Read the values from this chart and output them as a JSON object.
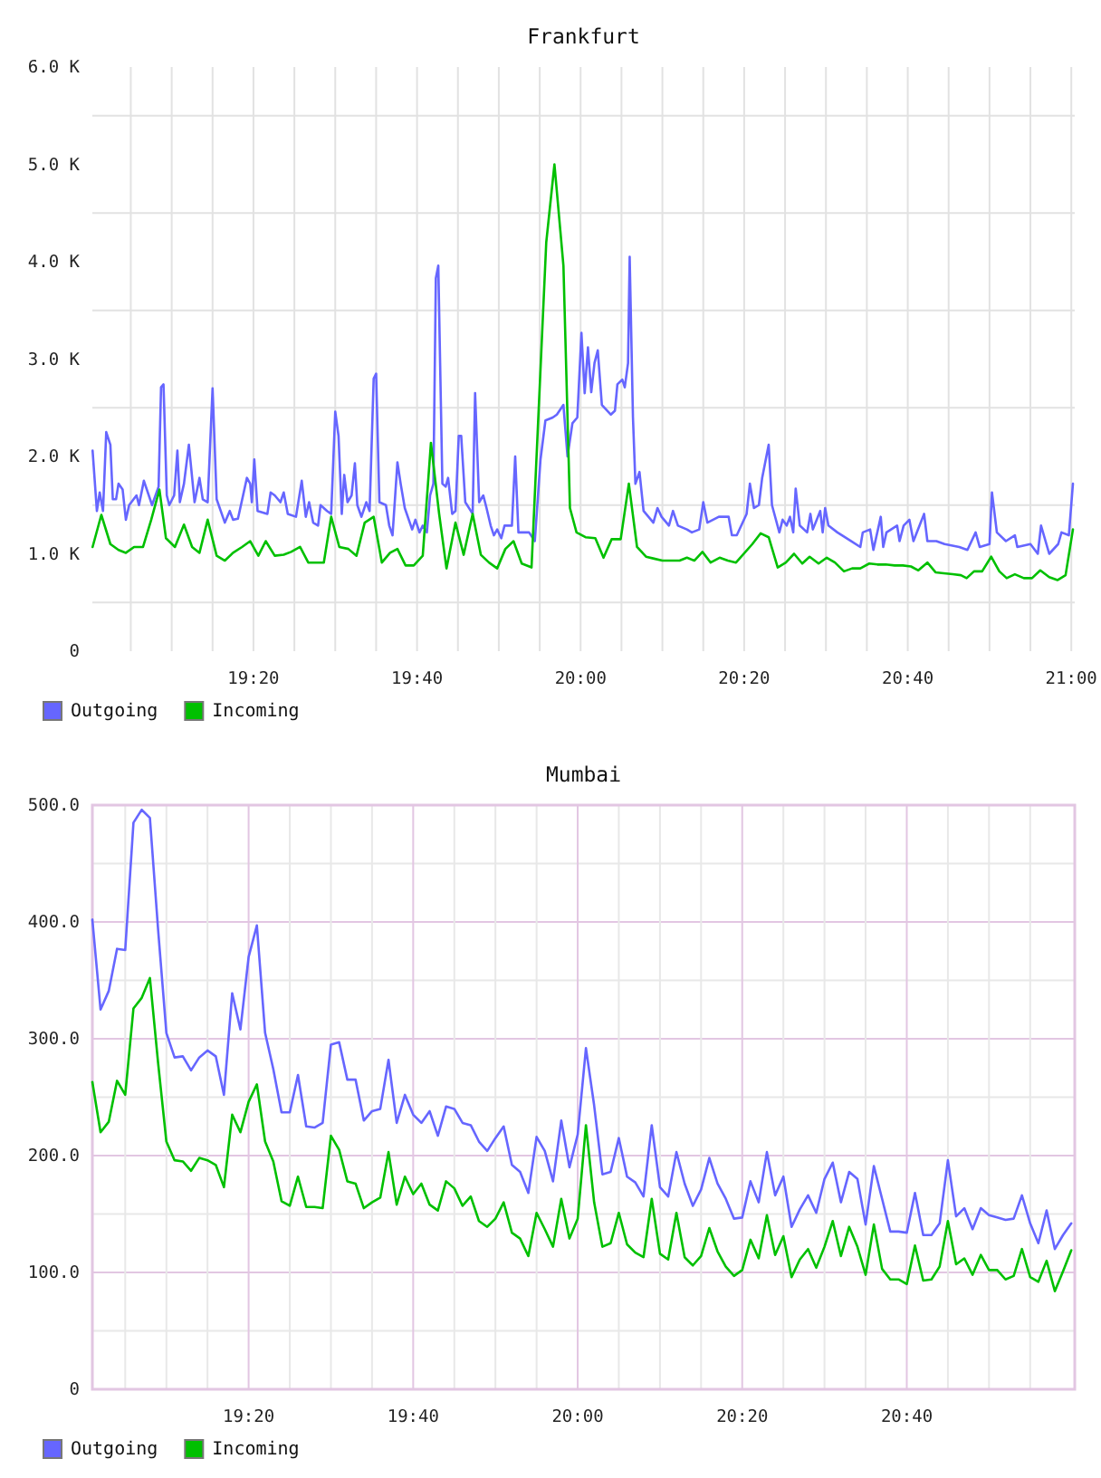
{
  "chart_data": [
    {
      "type": "line",
      "title": "Frankfurt",
      "xlim": [
        19.005,
        21.007
      ],
      "ylim": [
        0,
        6000
      ],
      "xticks": [
        {
          "value": 19.0833,
          "label": null
        },
        {
          "value": 19.1667,
          "label": null
        },
        {
          "value": 19.25,
          "label": null
        },
        {
          "value": 19.3333,
          "label": "19:20"
        },
        {
          "value": 19.4167,
          "label": null
        },
        {
          "value": 19.5,
          "label": null
        },
        {
          "value": 19.5833,
          "label": null
        },
        {
          "value": 19.6667,
          "label": "19:40"
        },
        {
          "value": 19.75,
          "label": null
        },
        {
          "value": 19.8333,
          "label": null
        },
        {
          "value": 19.9167,
          "label": null
        },
        {
          "value": 20,
          "label": "20:00"
        },
        {
          "value": 20.0833,
          "label": null
        },
        {
          "value": 20.1667,
          "label": null
        },
        {
          "value": 20.25,
          "label": null
        },
        {
          "value": 20.3333,
          "label": "20:20"
        },
        {
          "value": 20.4167,
          "label": null
        },
        {
          "value": 20.5,
          "label": null
        },
        {
          "value": 20.5833,
          "label": null
        },
        {
          "value": 20.6667,
          "label": "20:40"
        },
        {
          "value": 20.75,
          "label": null
        },
        {
          "value": 20.8333,
          "label": null
        },
        {
          "value": 20.9167,
          "label": null
        },
        {
          "value": 21,
          "label": "21:00"
        }
      ],
      "yticks": [
        0,
        {
          "value": 500,
          "label": null
        },
        {
          "value": 1000,
          "label": "1.0 K"
        },
        {
          "value": 1500,
          "label": null
        },
        {
          "value": 2000,
          "label": "2.0 K"
        },
        {
          "value": 2500,
          "label": null
        },
        {
          "value": 3000,
          "label": "3.0 K"
        },
        {
          "value": 3500,
          "label": null
        },
        {
          "value": 4000,
          "label": "4.0 K"
        },
        {
          "value": 4500,
          "label": null
        },
        {
          "value": 5000,
          "label": "5.0 K"
        },
        {
          "value": 5500,
          "label": null
        },
        {
          "value": 6000,
          "label": "6.0 K"
        }
      ],
      "grid": true,
      "legend": "bottom left",
      "series": [
        {
          "name": "Outgoing",
          "color": "#6666ff",
          "x": [
            19.0055,
            19.0142,
            19.02,
            19.0267,
            19.0333,
            19.0417,
            19.0467,
            19.0533,
            19.0583,
            19.0667,
            19.0733,
            19.08,
            19.095,
            19.1,
            19.11,
            19.1267,
            19.14,
            19.145,
            19.15,
            19.1567,
            19.1617,
            19.1717,
            19.1783,
            19.1833,
            19.1917,
            19.2017,
            19.2133,
            19.2233,
            19.23,
            19.24,
            19.25,
            19.2583,
            19.275,
            19.285,
            19.2917,
            19.3017,
            19.32,
            19.3267,
            19.33,
            19.335,
            19.3417,
            19.3617,
            19.3683,
            19.3767,
            19.3883,
            19.395,
            19.4033,
            19.42,
            19.4317,
            19.44,
            19.4467,
            19.455,
            19.465,
            19.47,
            19.4833,
            19.4917,
            19.5,
            19.5067,
            19.5133,
            19.5183,
            19.525,
            19.5333,
            19.54,
            19.545,
            19.5533,
            19.5633,
            19.57,
            19.5783,
            19.5833,
            19.59,
            19.6033,
            19.61,
            19.6167,
            19.6267,
            19.6333,
            19.6417,
            19.6567,
            19.6633,
            19.6717,
            19.6783,
            19.6867,
            19.6933,
            19.7,
            19.705,
            19.71,
            19.7183,
            19.725,
            19.73,
            19.7383,
            19.745,
            19.7517,
            19.7567,
            19.765,
            19.78,
            19.785,
            19.7933,
            19.8017,
            19.8083,
            19.8167,
            19.8233,
            19.83,
            19.8383,
            19.845,
            19.86,
            19.8667,
            19.8733,
            19.895,
            19.9067,
            19.9183,
            19.9283,
            19.9433,
            19.9517,
            19.965,
            19.9733,
            19.9833,
            19.9933,
            20.0017,
            20.0083,
            20.015,
            20.0217,
            20.0283,
            20.035,
            20.0433,
            20.0617,
            20.07,
            20.075,
            20.085,
            20.09,
            20.0967,
            20.1,
            20.1067,
            20.1117,
            20.12,
            20.1283,
            20.1483,
            20.1567,
            20.165,
            20.18,
            20.1883,
            20.1983,
            20.2167,
            20.2267,
            20.2417,
            20.25,
            20.2583,
            20.2817,
            20.3017,
            20.3083,
            20.3183,
            20.3383,
            20.345,
            20.3533,
            20.3633,
            20.37,
            20.3833,
            20.39,
            20.405,
            20.4117,
            20.42,
            20.4267,
            20.4333,
            20.4383,
            20.4467,
            20.4617,
            20.4683,
            20.4733,
            20.4883,
            20.4933,
            20.4983,
            20.505,
            20.5233,
            20.5517,
            20.57,
            20.575,
            20.59,
            20.5967,
            20.6117,
            20.6167,
            20.6233,
            20.645,
            20.65,
            20.6583,
            20.67,
            20.6783,
            20.7,
            20.7067,
            20.725,
            20.7417,
            20.7717,
            20.7883,
            20.805,
            20.8133,
            20.8333,
            20.8383,
            20.8483,
            20.8667,
            20.885,
            20.89,
            20.9167,
            20.9317,
            20.9383,
            20.955,
            20.9733,
            20.98,
            20.995,
            21.0033
          ],
          "values": [
            2060,
            1440,
            1630,
            1440,
            2250,
            2120,
            1560,
            1560,
            1720,
            1660,
            1350,
            1500,
            1600,
            1500,
            1750,
            1500,
            1690,
            2710,
            2740,
            1600,
            1500,
            1600,
            2060,
            1530,
            1720,
            2120,
            1530,
            1780,
            1560,
            1530,
            2700,
            1560,
            1320,
            1440,
            1350,
            1360,
            1780,
            1720,
            1530,
            1970,
            1440,
            1410,
            1630,
            1600,
            1530,
            1630,
            1410,
            1380,
            1750,
            1380,
            1530,
            1320,
            1290,
            1500,
            1440,
            1410,
            2460,
            2210,
            1410,
            1810,
            1530,
            1600,
            1930,
            1500,
            1380,
            1530,
            1440,
            2800,
            2850,
            1530,
            1500,
            1290,
            1190,
            1940,
            1720,
            1470,
            1250,
            1350,
            1220,
            1290,
            1220,
            1600,
            1720,
            3830,
            3960,
            1720,
            1690,
            1780,
            1410,
            1440,
            2210,
            2210,
            1530,
            1410,
            2650,
            1530,
            1600,
            1470,
            1290,
            1190,
            1250,
            1160,
            1290,
            1290,
            2000,
            1220,
            1220,
            1130,
            1970,
            2370,
            2400,
            2430,
            2530,
            2000,
            2340,
            2400,
            3270,
            2650,
            3120,
            2660,
            2960,
            3090,
            2530,
            2430,
            2470,
            2740,
            2790,
            2710,
            2960,
            4050,
            2400,
            1720,
            1840,
            1440,
            1320,
            1470,
            1380,
            1290,
            1440,
            1290,
            1250,
            1220,
            1250,
            1530,
            1320,
            1380,
            1380,
            1190,
            1190,
            1410,
            1720,
            1470,
            1500,
            1780,
            2120,
            1500,
            1220,
            1350,
            1290,
            1380,
            1220,
            1670,
            1290,
            1220,
            1410,
            1250,
            1440,
            1220,
            1470,
            1290,
            1220,
            1130,
            1070,
            1220,
            1250,
            1040,
            1380,
            1070,
            1220,
            1290,
            1130,
            1290,
            1350,
            1130,
            1410,
            1130,
            1130,
            1100,
            1070,
            1040,
            1220,
            1070,
            1100,
            1630,
            1220,
            1130,
            1190,
            1070,
            1100,
            1000,
            1290,
            1000,
            1100,
            1220,
            1190,
            1720
          ]
        },
        {
          "name": "Incoming",
          "color": "#00c000",
          "x": [
            19.0055,
            19.0233,
            19.0417,
            19.0583,
            19.0733,
            19.09,
            19.1083,
            19.125,
            19.1417,
            19.155,
            19.1733,
            19.1917,
            19.2083,
            19.2233,
            19.24,
            19.2583,
            19.275,
            19.2917,
            19.31,
            19.3267,
            19.3433,
            19.3583,
            19.3767,
            19.395,
            19.41,
            19.4283,
            19.445,
            19.4617,
            19.4767,
            19.4917,
            19.5083,
            19.5267,
            19.5433,
            19.56,
            19.5783,
            19.595,
            19.6117,
            19.6267,
            19.6433,
            19.66,
            19.6783,
            19.695,
            19.7117,
            19.7267,
            19.745,
            19.7617,
            19.78,
            19.7967,
            19.8133,
            19.83,
            19.8467,
            19.8633,
            19.88,
            19.9,
            19.93,
            19.9467,
            19.965,
            19.9783,
            19.9917,
            20.01,
            20.03,
            20.0467,
            20.0633,
            20.0817,
            20.0983,
            20.115,
            20.1333,
            20.15,
            20.1667,
            20.185,
            20.2017,
            20.2167,
            20.2317,
            20.2483,
            20.265,
            20.2833,
            20.3,
            20.3167,
            20.35,
            20.3667,
            20.3833,
            20.4017,
            20.4183,
            20.435,
            20.4517,
            20.4667,
            20.485,
            20.5017,
            20.5183,
            20.5367,
            20.5533,
            20.57,
            20.5883,
            20.605,
            20.6217,
            20.64,
            20.6567,
            20.6733,
            20.6883,
            20.7067,
            20.7233,
            20.74,
            20.7583,
            20.775,
            20.7867,
            20.8017,
            20.8183,
            20.8367,
            20.8533,
            20.8683,
            20.885,
            20.9033,
            20.92,
            20.9367,
            20.955,
            20.9717,
            20.9883,
            21.0033
          ],
          "values": [
            1070,
            1400,
            1100,
            1040,
            1010,
            1070,
            1070,
            1350,
            1660,
            1160,
            1070,
            1300,
            1070,
            1010,
            1350,
            980,
            930,
            1010,
            1070,
            1130,
            980,
            1130,
            980,
            990,
            1020,
            1070,
            910,
            910,
            910,
            1380,
            1070,
            1050,
            980,
            1320,
            1380,
            910,
            1010,
            1050,
            880,
            880,
            980,
            2140,
            1410,
            850,
            1320,
            990,
            1410,
            990,
            910,
            850,
            1050,
            1130,
            900,
            860,
            4200,
            5000,
            3960,
            1470,
            1220,
            1170,
            1160,
            960,
            1150,
            1150,
            1720,
            1070,
            970,
            950,
            930,
            930,
            930,
            960,
            930,
            1020,
            910,
            960,
            930,
            910,
            1100,
            1210,
            1170,
            860,
            910,
            1000,
            900,
            970,
            900,
            960,
            910,
            820,
            850,
            850,
            900,
            890,
            890,
            880,
            880,
            870,
            830,
            910,
            810,
            800,
            790,
            780,
            750,
            820,
            820,
            970,
            820,
            750,
            790,
            750,
            750,
            830,
            760,
            730,
            780,
            1250
          ]
        }
      ]
    },
    {
      "type": "line",
      "title": "Mumbai",
      "xlim": [
        19.0167,
        21.007
      ],
      "ylim": [
        0,
        500
      ],
      "xticks": [
        {
          "value": 19.0833,
          "label": null
        },
        {
          "value": 19.1667,
          "label": null
        },
        {
          "value": 19.25,
          "label": null
        },
        {
          "value": 19.3333,
          "label": "19:20"
        },
        {
          "value": 19.4167,
          "label": null
        },
        {
          "value": 19.5,
          "label": null
        },
        {
          "value": 19.5833,
          "label": null
        },
        {
          "value": 19.6667,
          "label": "19:40"
        },
        {
          "value": 19.75,
          "label": null
        },
        {
          "value": 19.8333,
          "label": null
        },
        {
          "value": 19.9167,
          "label": null
        },
        {
          "value": 20,
          "label": "20:00"
        },
        {
          "value": 20.0833,
          "label": null
        },
        {
          "value": 20.1667,
          "label": null
        },
        {
          "value": 20.25,
          "label": null
        },
        {
          "value": 20.3333,
          "label": "20:20"
        },
        {
          "value": 20.4167,
          "label": null
        },
        {
          "value": 20.5,
          "label": null
        },
        {
          "value": 20.5833,
          "label": null
        },
        {
          "value": 20.6667,
          "label": "20:40"
        },
        {
          "value": 20.75,
          "label": null
        },
        {
          "value": 20.8333,
          "label": null
        },
        {
          "value": 20.9167,
          "label": null
        }
      ],
      "yticks": [
        0,
        {
          "value": 50,
          "label": null
        },
        {
          "value": 100,
          "label": "100.0"
        },
        {
          "value": 150,
          "label": null
        },
        {
          "value": 200,
          "label": "200.0"
        },
        {
          "value": 250,
          "label": null
        },
        {
          "value": 300,
          "label": "300.0"
        },
        {
          "value": 350,
          "label": null
        },
        {
          "value": 400,
          "label": "400.0"
        },
        {
          "value": 450,
          "label": null
        },
        {
          "value": 500,
          "label": "500.0"
        }
      ],
      "grid": true,
      "legend": "bottom left",
      "x": [
        19.0167,
        19.0333,
        19.05,
        19.0667,
        19.0833,
        19.1,
        19.1167,
        19.1333,
        19.15,
        19.1667,
        19.1833,
        19.2,
        19.2167,
        19.2333,
        19.25,
        19.2667,
        19.2833,
        19.3,
        19.3167,
        19.3333,
        19.35,
        19.3667,
        19.3833,
        19.4,
        19.4167,
        19.4333,
        19.45,
        19.4667,
        19.4833,
        19.5,
        19.5167,
        19.5333,
        19.55,
        19.5667,
        19.5833,
        19.6,
        19.6167,
        19.6333,
        19.65,
        19.6667,
        19.6833,
        19.7,
        19.7167,
        19.7333,
        19.75,
        19.7667,
        19.7833,
        19.8,
        19.8167,
        19.8333,
        19.85,
        19.8667,
        19.8833,
        19.9,
        19.9167,
        19.9333,
        19.95,
        19.9667,
        19.9833,
        20,
        20.0167,
        20.0333,
        20.05,
        20.0667,
        20.0833,
        20.1,
        20.1167,
        20.1333,
        20.15,
        20.1667,
        20.1833,
        20.2,
        20.2167,
        20.2333,
        20.25,
        20.2667,
        20.2833,
        20.3,
        20.3167,
        20.3333,
        20.35,
        20.3667,
        20.3833,
        20.4,
        20.4167,
        20.4333,
        20.45,
        20.4667,
        20.4833,
        20.5,
        20.5167,
        20.5333,
        20.55,
        20.5667,
        20.5833,
        20.6,
        20.6167,
        20.6333,
        20.65,
        20.6667,
        20.6833,
        20.7,
        20.7167,
        20.7333,
        20.75,
        20.7667,
        20.7833,
        20.8,
        20.8167,
        20.8333,
        20.85,
        20.8667,
        20.8833,
        20.9,
        20.9167,
        20.9333,
        20.95,
        20.9667,
        20.9833,
        21
      ],
      "series": [
        {
          "name": "Outgoing",
          "color": "#6666ff",
          "values": [
            402,
            325,
            341,
            377,
            376,
            485,
            496,
            489,
            393,
            305,
            284,
            285,
            273,
            284,
            290,
            285,
            252,
            339,
            308,
            370,
            397,
            305,
            274,
            237,
            237,
            269,
            225,
            224,
            228,
            295,
            297,
            265,
            265,
            230,
            238,
            240,
            282,
            228,
            252,
            235,
            228,
            238,
            217,
            242,
            240,
            228,
            226,
            212,
            204,
            215,
            225,
            192,
            186,
            168,
            216,
            204,
            178,
            230,
            190,
            218,
            292,
            243,
            184,
            186,
            215,
            182,
            177,
            165,
            226,
            173,
            165,
            203,
            176,
            157,
            171,
            198,
            176,
            163,
            146,
            147,
            178,
            160,
            203,
            166,
            182,
            139,
            154,
            166,
            151,
            180,
            194,
            160,
            186,
            180,
            141,
            191,
            163,
            135,
            135,
            134,
            168,
            132,
            132,
            142,
            196,
            148,
            155,
            137,
            155,
            149,
            147,
            145,
            146,
            166,
            142,
            125,
            153,
            120,
            132,
            142
          ]
        },
        {
          "name": "Incoming",
          "color": "#00c000",
          "values": [
            263,
            220,
            229,
            264,
            252,
            326,
            335,
            352,
            279,
            212,
            196,
            195,
            187,
            198,
            196,
            192,
            173,
            235,
            220,
            246,
            261,
            212,
            195,
            161,
            157,
            182,
            156,
            156,
            155,
            217,
            205,
            178,
            176,
            155,
            160,
            164,
            203,
            158,
            182,
            167,
            176,
            158,
            153,
            178,
            172,
            157,
            165,
            144,
            139,
            146,
            160,
            134,
            129,
            114,
            151,
            137,
            122,
            163,
            129,
            146,
            226,
            160,
            122,
            125,
            151,
            124,
            117,
            113,
            163,
            116,
            111,
            151,
            113,
            106,
            114,
            138,
            118,
            105,
            97,
            102,
            128,
            112,
            149,
            115,
            131,
            96,
            111,
            120,
            104,
            122,
            144,
            114,
            139,
            122,
            98,
            141,
            103,
            94,
            94,
            90,
            123,
            93,
            94,
            105,
            144,
            107,
            112,
            98,
            115,
            102,
            102,
            94,
            97,
            120,
            96,
            92,
            110,
            84,
            101,
            119
          ]
        }
      ]
    }
  ]
}
